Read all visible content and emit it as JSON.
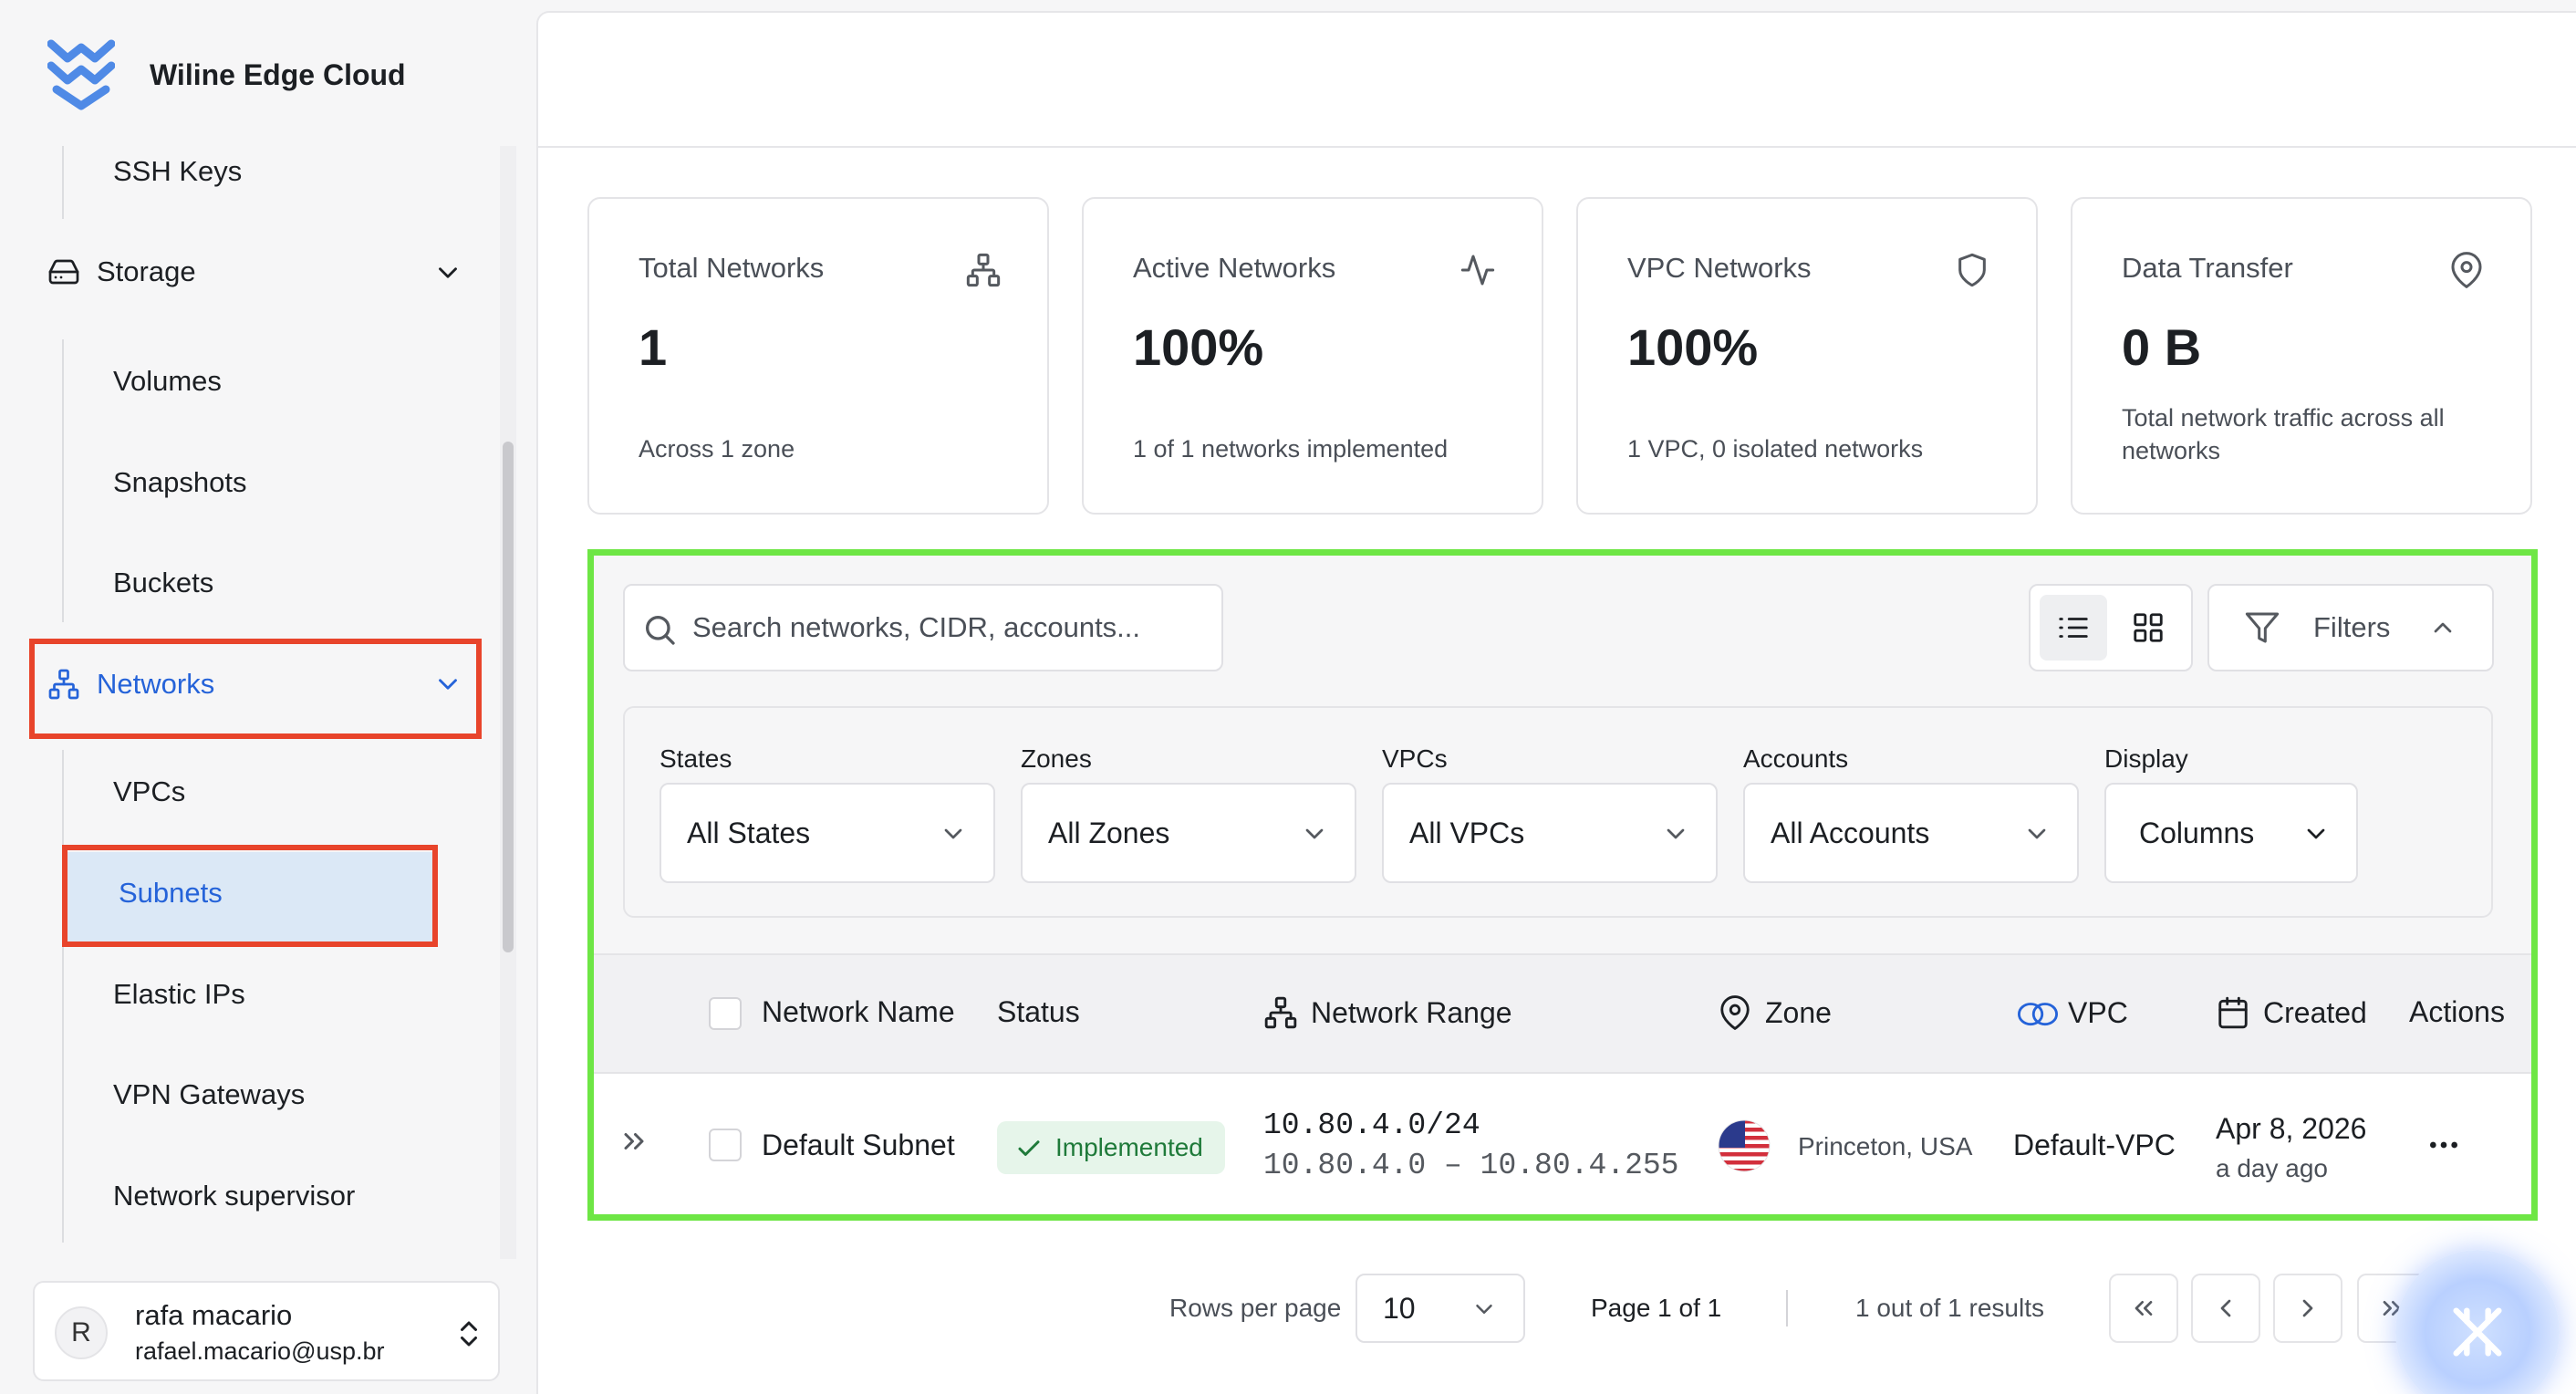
{
  "app": {
    "name": "Wiline Edge Cloud",
    "accent_color": "#2563d9",
    "highlight_red": "#e8442b",
    "highlight_green": "#6ee645"
  },
  "sidebar": {
    "ssh_keys": "SSH Keys",
    "storage": "Storage",
    "storage_items": [
      "Volumes",
      "Snapshots",
      "Buckets"
    ],
    "networks": "Networks",
    "network_items": [
      "VPCs",
      "Subnets",
      "Elastic IPs",
      "VPN Gateways",
      "Network supervisor"
    ],
    "user": {
      "initial": "R",
      "name": "rafa macario",
      "email": "rafael.macario@usp.br"
    }
  },
  "stats": [
    {
      "label": "Total Networks",
      "value": "1",
      "sub": "Across 1 zone",
      "icon": "network-icon"
    },
    {
      "label": "Active Networks",
      "value": "100%",
      "sub": "1 of 1 networks implemented",
      "icon": "activity-icon"
    },
    {
      "label": "VPC Networks",
      "value": "100%",
      "sub": "1 VPC, 0 isolated networks",
      "icon": "shield-icon"
    },
    {
      "label": "Data Transfer",
      "value": "0 B",
      "sub": "Total network traffic across all networks",
      "icon": "map-pin-icon"
    }
  ],
  "search": {
    "placeholder": "Search networks, CIDR, accounts..."
  },
  "filters_button": "Filters",
  "filters": {
    "states": {
      "label": "States",
      "value": "All States"
    },
    "zones": {
      "label": "Zones",
      "value": "All Zones"
    },
    "vpcs": {
      "label": "VPCs",
      "value": "All VPCs"
    },
    "accounts": {
      "label": "Accounts",
      "value": "All Accounts"
    },
    "display": {
      "label": "Display",
      "value": "Columns"
    }
  },
  "table": {
    "columns": {
      "name": "Network Name",
      "status": "Status",
      "range": "Network Range",
      "zone": "Zone",
      "vpc": "VPC",
      "created": "Created",
      "actions": "Actions"
    },
    "rows": [
      {
        "name": "Default Subnet",
        "status": "Implemented",
        "cidr": "10.80.4.0/24",
        "range": "10.80.4.0 – 10.80.4.255",
        "zone": "Princeton, USA",
        "vpc": "Default-VPC",
        "created": "Apr 8, 2026",
        "created_relative": "a day ago"
      }
    ]
  },
  "pagination": {
    "rows_per_page_label": "Rows per page",
    "rows_per_page": "10",
    "page": "Page 1 of 1",
    "results": "1 out of 1 results"
  }
}
